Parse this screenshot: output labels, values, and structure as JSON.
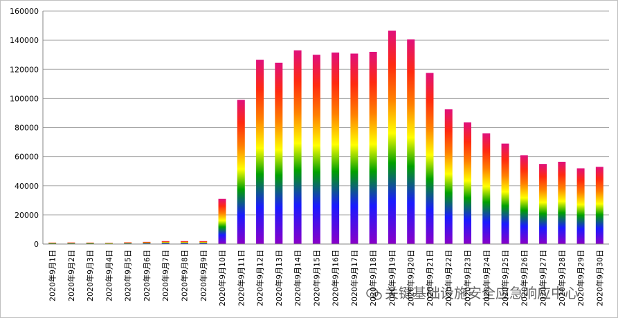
{
  "chart_data": {
    "type": "bar",
    "categories": [
      "2020年9月1日",
      "2020年9月2日",
      "2020年9月3日",
      "2020年9月4日",
      "2020年9月5日",
      "2020年9月6日",
      "2020年9月7日",
      "2020年9月8日",
      "2020年9月9日",
      "2020年9月10日",
      "2020年9月11日",
      "2020年9月12日",
      "2020年9月13日",
      "2020年9月14日",
      "2020年9月15日",
      "2020年9月16日",
      "2020年9月17日",
      "2020年9月18日",
      "2020年9月19日",
      "2020年9月20日",
      "2020年9月21日",
      "2020年9月22日",
      "2020年9月23日",
      "2020年9月24日",
      "2020年9月25日",
      "2020年9月26日",
      "2020年9月27日",
      "2020年9月28日",
      "2020年9月29日",
      "2020年9月30日"
    ],
    "values": [
      1000,
      1100,
      1000,
      800,
      1200,
      1500,
      2000,
      2000,
      2000,
      31000,
      99000,
      126500,
      124500,
      133000,
      130000,
      131500,
      130800,
      132000,
      146500,
      140500,
      117500,
      92500,
      83500,
      76000,
      69000,
      61000,
      55000,
      56500,
      52000,
      53000
    ],
    "yticks": [
      "0",
      "20000",
      "40000",
      "60000",
      "80000",
      "100000",
      "120000",
      "140000",
      "160000"
    ],
    "ylim": [
      0,
      160000
    ],
    "grid": true,
    "legend": "none",
    "colors": [
      "#8a00c8",
      "#1a1aff",
      "#00a000",
      "#ffff00",
      "#ff8000",
      "#ff2a10",
      "#e0107c"
    ]
  },
  "watermark": {
    "text": "关键基础设施安全应急响应中心",
    "icon": "wechat-icon"
  }
}
